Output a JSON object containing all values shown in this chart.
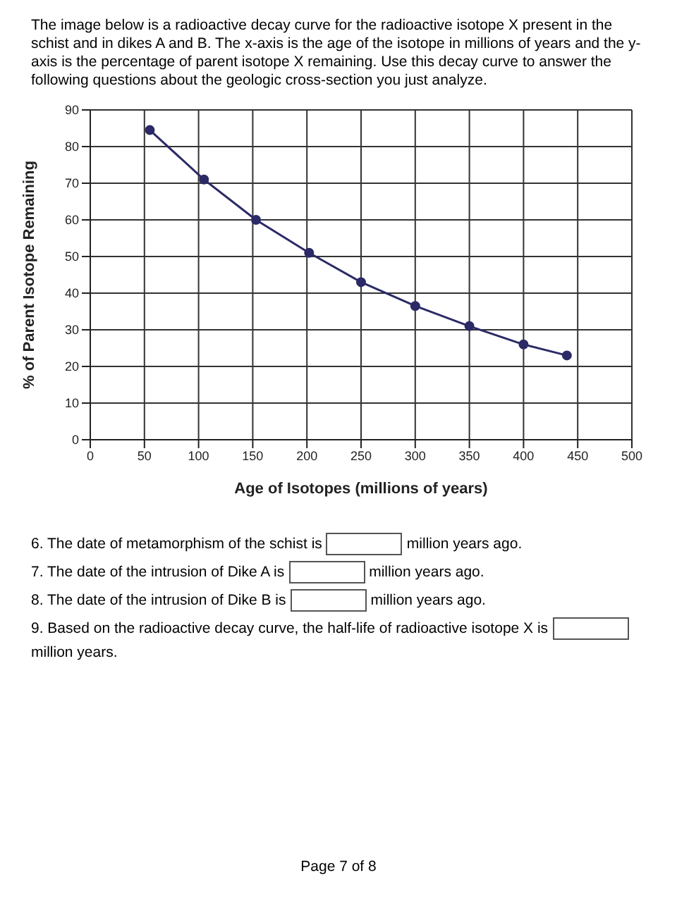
{
  "chart_data": {
    "type": "line",
    "title": "The image below is a radioactive decay curve for the radioactive isotope X present in the schist and in dikes A and B. The x-axis is the age of the isotope in millions of years and the y-axis is the percentage of parent isotope X remaining. Use this decay curve to answer the following questions about the geologic cross-section you just analyze.",
    "xlabel": "Age of Isotopes (millions of years)",
    "ylabel": "% of Parent Isotope Remaining",
    "series": [
      {
        "color": "#2b2a66",
        "x": [
          55,
          105,
          153,
          202,
          250,
          300,
          350,
          400,
          440
        ],
        "values": [
          84.5,
          71,
          60,
          51,
          43,
          36.5,
          31,
          26,
          23
        ]
      }
    ],
    "xlim": [
      0,
      500
    ],
    "xticks": [
      0,
      50,
      100,
      150,
      200,
      250,
      300,
      350,
      400,
      450,
      500
    ],
    "ylim": [
      0,
      90
    ],
    "yticks": [
      0,
      10,
      20,
      30,
      40,
      50,
      60,
      70,
      80,
      90
    ],
    "grid": true,
    "marker": "circle",
    "line_style": "solid",
    "annotations": [
      "6. The date of metamorphism of the schist is",
      "million years ago.",
      "7. The date of the intrusion of Dike A is",
      "million years ago.",
      "8. The date of the intrusion of Dike B is",
      "million years ago.",
      "9. Based on the radioactive decay curve, the half-life of radioactive isotope X is",
      "million years.",
      "Page 7 of 8"
    ]
  }
}
